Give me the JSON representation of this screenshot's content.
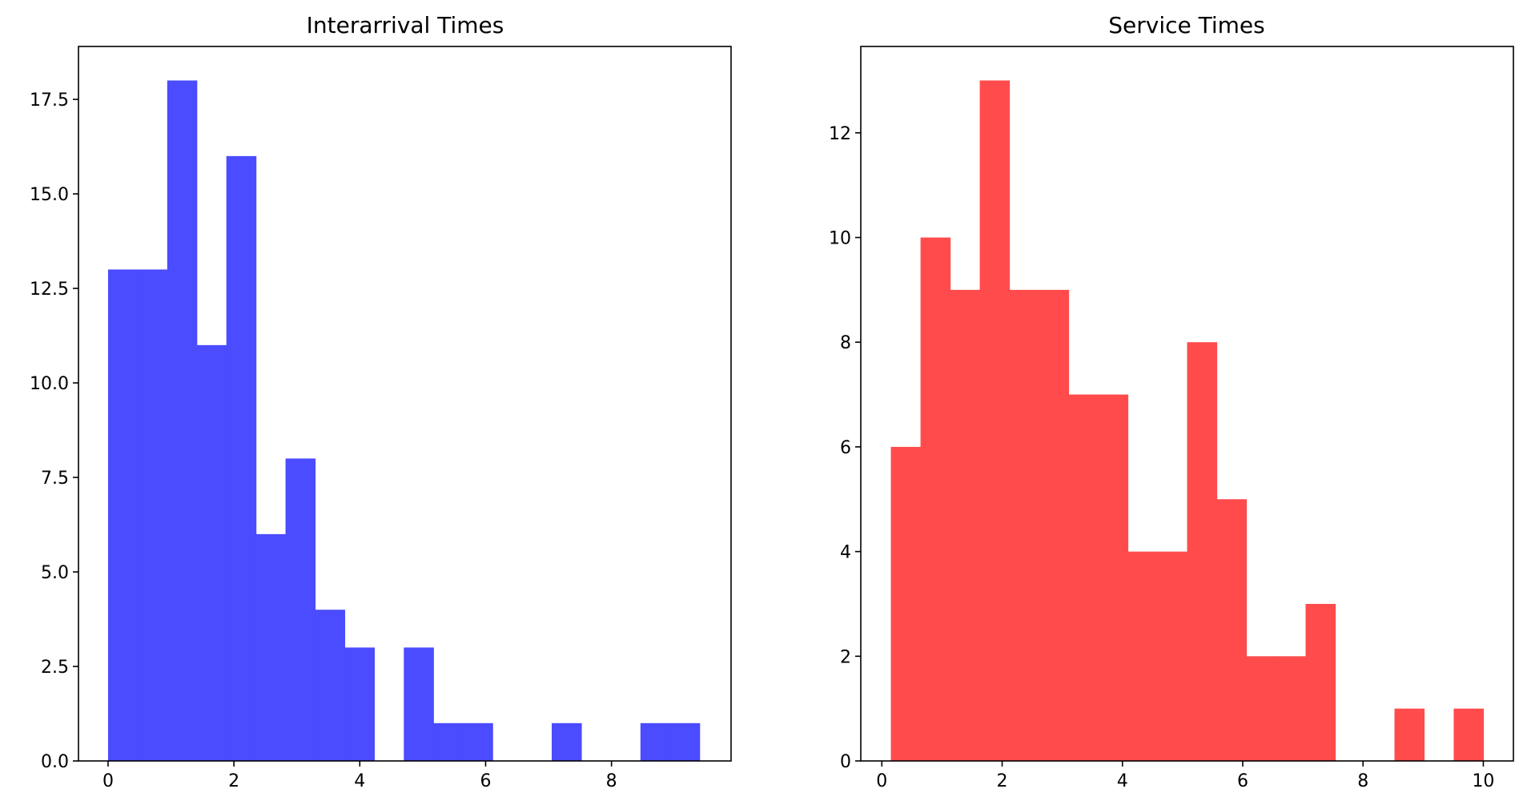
{
  "chart_data": [
    {
      "type": "bar",
      "title": "Interarrival Times",
      "xlabel": "",
      "ylabel": "",
      "color": "#4b4bff",
      "xlim": [
        -0.47,
        9.9
      ],
      "ylim": [
        0,
        18.9
      ],
      "x_ticks": [
        0,
        2,
        4,
        6,
        8
      ],
      "x_tick_labels": [
        "0",
        "2",
        "4",
        "6",
        "8"
      ],
      "y_ticks": [
        0,
        2.5,
        5,
        7.5,
        10,
        12.5,
        15,
        17.5
      ],
      "y_tick_labels": [
        "0.0",
        "2.5",
        "5.0",
        "7.5",
        "10.0",
        "12.5",
        "15.0",
        "17.5"
      ],
      "bin_edges": [
        0.0,
        0.47,
        0.94,
        1.41,
        1.88,
        2.35,
        2.82,
        3.29,
        3.76,
        4.23,
        4.7,
        5.17,
        5.64,
        6.11,
        6.58,
        7.05,
        7.52,
        7.99,
        8.46,
        8.93,
        9.4
      ],
      "values": [
        13,
        13,
        18,
        11,
        16,
        6,
        8,
        4,
        3,
        0,
        3,
        1,
        1,
        0,
        0,
        1,
        0,
        0,
        1,
        1
      ],
      "grid": false
    },
    {
      "type": "bar",
      "title": "Service Times",
      "xlabel": "",
      "ylabel": "",
      "color": "#ff4b4b",
      "xlim": [
        -0.35,
        10.5
      ],
      "ylim": [
        0,
        13.65
      ],
      "x_ticks": [
        0,
        2,
        4,
        6,
        8,
        10
      ],
      "x_tick_labels": [
        "0",
        "2",
        "4",
        "6",
        "8",
        "10"
      ],
      "y_ticks": [
        0,
        2,
        4,
        6,
        8,
        10,
        12
      ],
      "y_tick_labels": [
        "0",
        "2",
        "4",
        "6",
        "8",
        "10",
        "12"
      ],
      "bin_edges": [
        0.15,
        0.643,
        1.135,
        1.628,
        2.12,
        2.613,
        3.105,
        3.598,
        4.09,
        4.583,
        5.075,
        5.568,
        6.06,
        6.553,
        7.045,
        7.538,
        8.03,
        8.523,
        9.015,
        9.508,
        10.0
      ],
      "values": [
        6,
        10,
        9,
        13,
        9,
        9,
        7,
        7,
        4,
        4,
        8,
        5,
        2,
        2,
        3,
        0,
        0,
        1,
        0,
        1
      ],
      "grid": false
    }
  ]
}
